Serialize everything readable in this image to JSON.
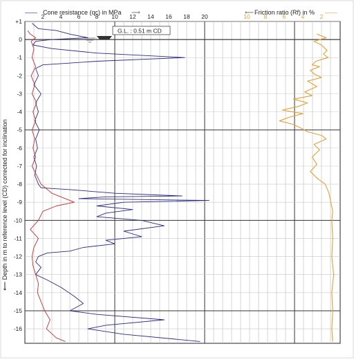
{
  "chart_data": {
    "type": "line",
    "title": "",
    "top_labels": {
      "left_arrow_text": "——",
      "qc_label": "Cone resistance (qc) in MPa",
      "qc_arrow": "⟶",
      "rf_arrow": "⟵",
      "rf_label": "Friction ratio (Rf) in %",
      "rf_arrow_text": "——"
    },
    "ylabel": "⟵  Depth in m to reference level (CD) corrected for inclination",
    "depth_axis": {
      "ylim": [
        1,
        -16.8
      ],
      "tick_labels": [
        "+1",
        "0",
        "-1",
        "-2",
        "-3",
        "-4",
        "-5",
        "-6",
        "-7",
        "-8",
        "-9",
        "-10",
        "-11",
        "-12",
        "-13",
        "-14",
        "-15",
        "-16"
      ],
      "tick_values": [
        1,
        0,
        -1,
        -2,
        -3,
        -4,
        -5,
        -6,
        -7,
        -8,
        -9,
        -10,
        -11,
        -12,
        -13,
        -14,
        -15,
        -16
      ]
    },
    "qc_axis": {
      "range": [
        0,
        20
      ],
      "tick_labels": [
        "2",
        "4",
        "6",
        "8",
        "10",
        "12",
        "14",
        "16",
        "18",
        "20"
      ],
      "tick_values": [
        2,
        4,
        6,
        8,
        10,
        12,
        14,
        16,
        18,
        20
      ],
      "color": "#2a2a8c"
    },
    "rf_axis": {
      "range": [
        12,
        0
      ],
      "tick_labels": [
        "10",
        "8",
        "6",
        "4",
        "2"
      ],
      "tick_values": [
        10,
        8,
        6,
        4,
        2
      ],
      "color": "#e8a030"
    },
    "ground_level": {
      "text": "G.L. :   0.51   m CD",
      "value": 0.51
    },
    "series": [
      {
        "name": "Cone resistance (qc) in MPa",
        "color": "#2a2a8c",
        "points": [
          [
            0.8,
            0.9
          ],
          [
            1.5,
            0.6
          ],
          [
            3.5,
            0.5
          ],
          [
            5.0,
            0.3
          ],
          [
            7.0,
            0.1
          ],
          [
            3.0,
            0.0
          ],
          [
            1.2,
            -0.1
          ],
          [
            0.9,
            -0.3
          ],
          [
            3.0,
            -0.5
          ],
          [
            8.0,
            -0.75
          ],
          [
            17.8,
            -1.0
          ],
          [
            8.0,
            -1.2
          ],
          [
            2.0,
            -1.4
          ],
          [
            1.2,
            -1.6
          ],
          [
            1.5,
            -2.0
          ],
          [
            1.0,
            -2.5
          ],
          [
            1.8,
            -3.0
          ],
          [
            1.2,
            -3.5
          ],
          [
            1.5,
            -4.0
          ],
          [
            1.1,
            -4.5
          ],
          [
            1.6,
            -5.0
          ],
          [
            1.2,
            -5.5
          ],
          [
            1.4,
            -6.0
          ],
          [
            1.0,
            -6.5
          ],
          [
            1.3,
            -7.0
          ],
          [
            1.1,
            -7.5
          ],
          [
            1.5,
            -8.0
          ],
          [
            1.8,
            -8.2
          ],
          [
            5.0,
            -8.3
          ],
          [
            10.0,
            -8.5
          ],
          [
            17.5,
            -8.65
          ],
          [
            9.0,
            -8.7
          ],
          [
            6.0,
            -8.8
          ],
          [
            20.5,
            -8.9
          ],
          [
            11.0,
            -9.0
          ],
          [
            8.0,
            -9.2
          ],
          [
            12.0,
            -9.4
          ],
          [
            9.0,
            -9.6
          ],
          [
            8.0,
            -9.8
          ],
          [
            13.0,
            -10.0
          ],
          [
            15.5,
            -10.3
          ],
          [
            11.0,
            -10.6
          ],
          [
            13.0,
            -10.9
          ],
          [
            9.0,
            -11.1
          ],
          [
            10.0,
            -11.3
          ],
          [
            6.5,
            -11.5
          ],
          [
            5.0,
            -11.7
          ],
          [
            2.5,
            -11.8
          ],
          [
            1.5,
            -12.0
          ],
          [
            1.2,
            -12.3
          ],
          [
            1.8,
            -12.6
          ],
          [
            1.2,
            -13.0
          ],
          [
            2.5,
            -13.3
          ],
          [
            4.0,
            -13.7
          ],
          [
            5.5,
            -14.2
          ],
          [
            6.5,
            -14.6
          ],
          [
            5.0,
            -15.0
          ],
          [
            8.0,
            -15.2
          ],
          [
            15.5,
            -15.5
          ],
          [
            9.0,
            -15.8
          ],
          [
            7.0,
            -16.0
          ],
          [
            11.0,
            -16.3
          ],
          [
            19.5,
            -16.7
          ]
        ]
      },
      {
        "name": "Cone resistance (qc) red",
        "color": "#c83030",
        "points": [
          [
            0.3,
            0.5
          ],
          [
            0.6,
            0.3
          ],
          [
            1.2,
            0.1
          ],
          [
            0.7,
            -0.1
          ],
          [
            1.0,
            -0.5
          ],
          [
            0.8,
            -1.0
          ],
          [
            1.2,
            -1.5
          ],
          [
            0.7,
            -2.0
          ],
          [
            1.1,
            -2.5
          ],
          [
            0.8,
            -3.0
          ],
          [
            1.3,
            -3.5
          ],
          [
            0.9,
            -4.0
          ],
          [
            1.2,
            -4.5
          ],
          [
            0.8,
            -5.0
          ],
          [
            1.1,
            -5.5
          ],
          [
            0.9,
            -6.0
          ],
          [
            1.2,
            -6.5
          ],
          [
            0.8,
            -7.0
          ],
          [
            1.3,
            -7.5
          ],
          [
            1.8,
            -8.0
          ],
          [
            3.0,
            -8.5
          ],
          [
            5.5,
            -9.0
          ],
          [
            3.5,
            -9.2
          ],
          [
            2.0,
            -9.5
          ],
          [
            1.5,
            -10.0
          ],
          [
            0.6,
            -10.5
          ],
          [
            1.5,
            -11.0
          ],
          [
            1.0,
            -11.5
          ],
          [
            0.8,
            -12.0
          ],
          [
            0.9,
            -12.5
          ],
          [
            1.2,
            -13.0
          ],
          [
            1.5,
            -13.5
          ],
          [
            1.4,
            -14.0
          ],
          [
            1.8,
            -14.5
          ],
          [
            2.2,
            -15.0
          ],
          [
            2.8,
            -15.5
          ],
          [
            2.4,
            -16.0
          ],
          [
            3.5,
            -16.5
          ],
          [
            4.5,
            -16.7
          ]
        ]
      },
      {
        "name": "Friction ratio (Rf) in %",
        "color": "#e8a030",
        "points": [
          [
            2.5,
            0.3
          ],
          [
            1.5,
            0.1
          ],
          [
            2.8,
            -0.1
          ],
          [
            2.0,
            -0.3
          ],
          [
            1.4,
            -0.6
          ],
          [
            1.8,
            -0.8
          ],
          [
            1.3,
            -1.0
          ],
          [
            2.6,
            -1.2
          ],
          [
            3.0,
            -1.4
          ],
          [
            2.2,
            -1.5
          ],
          [
            3.2,
            -1.7
          ],
          [
            2.8,
            -1.9
          ],
          [
            2.0,
            -2.1
          ],
          [
            3.5,
            -2.3
          ],
          [
            2.5,
            -2.6
          ],
          [
            3.8,
            -2.9
          ],
          [
            3.0,
            -3.1
          ],
          [
            5.0,
            -3.3
          ],
          [
            3.5,
            -3.5
          ],
          [
            4.5,
            -3.7
          ],
          [
            6.2,
            -3.9
          ],
          [
            4.0,
            -4.1
          ],
          [
            5.5,
            -4.3
          ],
          [
            6.5,
            -4.5
          ],
          [
            5.0,
            -4.7
          ],
          [
            4.2,
            -4.9
          ],
          [
            3.5,
            -5.1
          ],
          [
            2.0,
            -5.3
          ],
          [
            1.5,
            -5.5
          ],
          [
            2.8,
            -5.8
          ],
          [
            2.2,
            -6.1
          ],
          [
            3.0,
            -6.5
          ],
          [
            2.5,
            -6.9
          ],
          [
            3.2,
            -7.3
          ],
          [
            2.4,
            -7.7
          ],
          [
            1.6,
            -8.0
          ],
          [
            1.2,
            -8.5
          ],
          [
            1.0,
            -9.0
          ],
          [
            0.8,
            -9.5
          ],
          [
            0.9,
            -10.0
          ],
          [
            0.8,
            -11.0
          ],
          [
            0.9,
            -12.0
          ],
          [
            0.7,
            -13.0
          ],
          [
            0.9,
            -14.0
          ],
          [
            0.8,
            -15.0
          ],
          [
            0.9,
            -16.0
          ],
          [
            0.8,
            -16.7
          ]
        ]
      }
    ]
  }
}
